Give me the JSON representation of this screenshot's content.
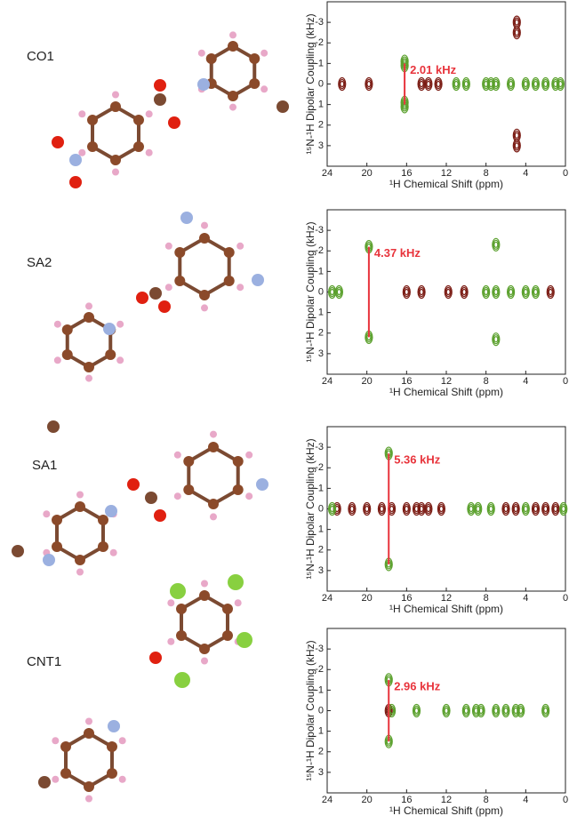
{
  "chart_data": [
    {
      "type": "scatter",
      "label": "CO1",
      "xlabel": "¹H Chemical Shift (ppm)",
      "ylabel": "¹⁵N-¹H Dipolar Coupling (kHz)",
      "xlim": [
        24,
        0
      ],
      "ylim": [
        -4,
        4
      ],
      "xticks": [
        24,
        20,
        16,
        12,
        8,
        4,
        0
      ],
      "yticks": [
        -3,
        -2,
        -1,
        0,
        1,
        2,
        3
      ],
      "series": [
        {
          "color": "#7b1c14",
          "x": [
            22.5,
            19.8,
            14.5,
            13.8,
            12.8,
            4.9,
            4.9,
            4.9,
            4.9
          ],
          "y": [
            0,
            0,
            0,
            0,
            0,
            -3,
            -2.5,
            2.5,
            3
          ]
        },
        {
          "color": "#5aa02c",
          "x": [
            16.2,
            16.2,
            16.2,
            16.2,
            11,
            10,
            8,
            7.5,
            7,
            5.5,
            4,
            3,
            2,
            1,
            0.5
          ],
          "y": [
            -1.1,
            -0.9,
            0.9,
            1.1,
            0,
            0,
            0,
            0,
            0,
            0,
            0,
            0,
            0,
            0,
            0
          ]
        }
      ],
      "annotation": {
        "text": "2.01 kHz",
        "x": 16.2,
        "y": [
          -1,
          1
        ],
        "color": "#e8343c"
      }
    },
    {
      "type": "scatter",
      "label": "SA2",
      "xlabel": "¹H Chemical Shift (ppm)",
      "ylabel": "¹⁵N-¹H Dipolar Coupling (kHz)",
      "xlim": [
        24,
        0
      ],
      "ylim": [
        -4,
        4
      ],
      "xticks": [
        24,
        20,
        16,
        12,
        8,
        4,
        0
      ],
      "yticks": [
        -3,
        -2,
        -1,
        0,
        1,
        2,
        3
      ],
      "series": [
        {
          "color": "#7b1c14",
          "x": [
            16,
            14.5,
            11.8,
            10.2,
            1.5
          ],
          "y": [
            0,
            0,
            0,
            0,
            0
          ]
        },
        {
          "color": "#5aa02c",
          "x": [
            19.8,
            19.8,
            23.5,
            22.8,
            8,
            7,
            5.5,
            4,
            3,
            7,
            7
          ],
          "y": [
            -2.2,
            2.2,
            0,
            0,
            0,
            0,
            0,
            0,
            0,
            -2.3,
            2.3
          ]
        }
      ],
      "annotation": {
        "text": "4.37 kHz",
        "x": 19.8,
        "y": [
          -2.2,
          2.2
        ],
        "color": "#e8343c"
      }
    },
    {
      "type": "scatter",
      "label": "SA1",
      "xlabel": "¹H Chemical Shift (ppm)",
      "ylabel": "¹⁵N-¹H Dipolar Coupling (kHz)",
      "xlim": [
        24,
        0
      ],
      "ylim": [
        -4,
        4
      ],
      "xticks": [
        24,
        20,
        16,
        12,
        8,
        4,
        0
      ],
      "yticks": [
        -3,
        -2,
        -1,
        0,
        1,
        2,
        3
      ],
      "series": [
        {
          "color": "#7b1c14",
          "x": [
            23,
            21.5,
            20,
            18.5,
            17.5,
            16,
            15,
            14.5,
            13.8,
            12.5,
            6,
            5,
            3,
            2,
            1
          ],
          "y": [
            0,
            0,
            0,
            0,
            0,
            0,
            0,
            0,
            0,
            0,
            0,
            0,
            0,
            0,
            0
          ]
        },
        {
          "color": "#5aa02c",
          "x": [
            17.8,
            17.8,
            23.5,
            9.5,
            8.8,
            7.5,
            4,
            0.2
          ],
          "y": [
            -2.7,
            2.7,
            0,
            0,
            0,
            0,
            0,
            0
          ]
        }
      ],
      "annotation": {
        "text": "5.36 kHz",
        "x": 17.8,
        "y": [
          -2.7,
          2.7
        ],
        "color": "#e8343c"
      }
    },
    {
      "type": "scatter",
      "label": "CNT1",
      "xlabel": "¹H Chemical Shift (ppm)",
      "ylabel": "¹⁵N-¹H Dipolar Coupling (kHz)",
      "xlim": [
        24,
        0
      ],
      "ylim": [
        -4,
        4
      ],
      "xticks": [
        24,
        20,
        16,
        12,
        8,
        4,
        0
      ],
      "yticks": [
        -3,
        -2,
        -1,
        0,
        1,
        2,
        3
      ],
      "series": [
        {
          "color": "#7b1c14",
          "x": [
            17.8
          ],
          "y": [
            0
          ]
        },
        {
          "color": "#5aa02c",
          "x": [
            17.8,
            17.8,
            17.5,
            15,
            12,
            10,
            9,
            8.5,
            7,
            6,
            5,
            4.5,
            2
          ],
          "y": [
            -1.5,
            1.5,
            0,
            0,
            0,
            0,
            0,
            0,
            0,
            0,
            0,
            0,
            0
          ]
        }
      ],
      "annotation": {
        "text": "2.96 kHz",
        "x": 17.8,
        "y": [
          -1.5,
          1.5
        ],
        "color": "#e8343c"
      }
    }
  ]
}
